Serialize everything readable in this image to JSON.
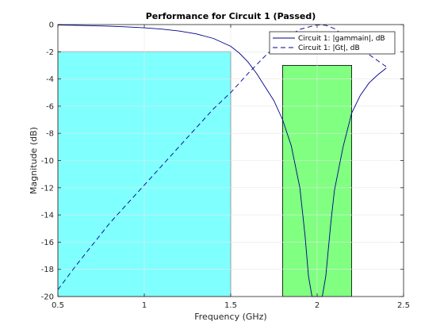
{
  "chart_data": {
    "type": "line",
    "title": "Performance for Circuit 1 (Passed)",
    "xlabel": "Frequency (GHz)",
    "ylabel": "Magnitude (dB)",
    "xlim": [
      0.5,
      2.5
    ],
    "ylim": [
      -20,
      0
    ],
    "xticks": [
      0.5,
      1,
      1.5,
      2,
      2.5
    ],
    "xtick_labels": [
      "0.5",
      "1",
      "1.5",
      "2",
      "2.5"
    ],
    "yticks": [
      0,
      -2,
      -4,
      -6,
      -8,
      -10,
      -12,
      -14,
      -16,
      -18,
      -20
    ],
    "ytick_labels": [
      "0",
      "-2",
      "-4",
      "-6",
      "-8",
      "-10",
      "-12",
      "-14",
      "-16",
      "-18",
      "-20"
    ],
    "grid": true,
    "legend_position": "top-right",
    "regions": [
      {
        "x": [
          0.5,
          1.5
        ],
        "y_top": -2,
        "color": "#80ffff"
      },
      {
        "x": [
          1.8,
          2.2
        ],
        "y_top": -3,
        "color": "#80ff80"
      }
    ],
    "series": [
      {
        "name": "Circuit 1: |gammain|, dB",
        "style": "solid",
        "color": "#00008b",
        "x": [
          0.5,
          0.6,
          0.7,
          0.8,
          0.9,
          1.0,
          1.1,
          1.2,
          1.3,
          1.4,
          1.5,
          1.55,
          1.6,
          1.65,
          1.7,
          1.75,
          1.8,
          1.85,
          1.9,
          1.93,
          1.95,
          1.97,
          1.99,
          2.0,
          2.01,
          2.03,
          2.05,
          2.08,
          2.1,
          2.15,
          2.2,
          2.25,
          2.3,
          2.35,
          2.4
        ],
        "y": [
          -0.03,
          -0.05,
          -0.08,
          -0.12,
          -0.17,
          -0.24,
          -0.33,
          -0.47,
          -0.68,
          -1.02,
          -1.6,
          -2.1,
          -2.75,
          -3.6,
          -4.6,
          -5.6,
          -7.0,
          -8.9,
          -12.0,
          -15.5,
          -18.5,
          -20,
          -20,
          -20,
          -20,
          -20,
          -18.5,
          -14.5,
          -12.2,
          -9.0,
          -6.5,
          -5.2,
          -4.3,
          -3.7,
          -3.2
        ]
      },
      {
        "name": "Circuit 1: |Gt|, dB",
        "style": "dashed",
        "color": "#00008b",
        "x": [
          0.5,
          0.6,
          0.7,
          0.8,
          0.9,
          1.0,
          1.1,
          1.2,
          1.3,
          1.4,
          1.5,
          1.6,
          1.7,
          1.8,
          1.9,
          2.0,
          2.05,
          2.1,
          2.2,
          2.3,
          2.4
        ],
        "y": [
          -19.5,
          -17.8,
          -16.2,
          -14.6,
          -13.2,
          -11.8,
          -10.4,
          -9.0,
          -7.6,
          -6.2,
          -5.0,
          -3.6,
          -2.3,
          -1.1,
          -0.35,
          -0.02,
          -0.05,
          -0.3,
          -1.2,
          -2.2,
          -3.1
        ]
      }
    ]
  }
}
